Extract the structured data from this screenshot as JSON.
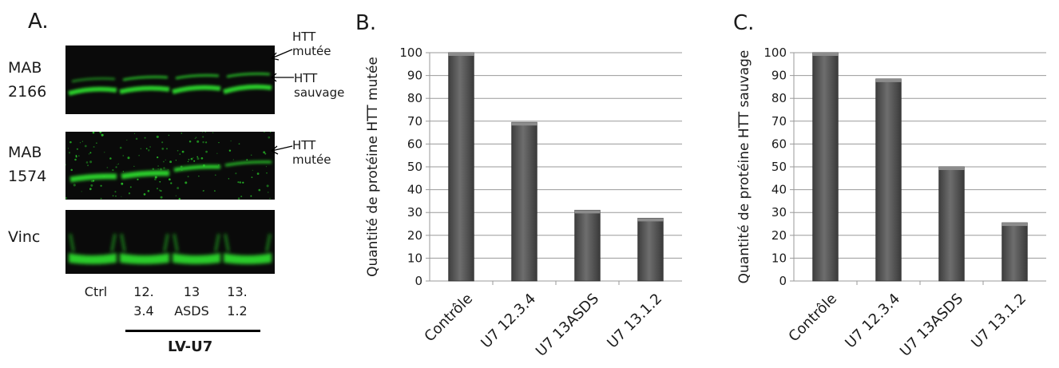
{
  "figure_a": {
    "panel_label": "A.",
    "blots": [
      {
        "label_line1": "MAB",
        "label_line2": "2166"
      },
      {
        "label_line1": "MAB",
        "label_line2": "1574"
      },
      {
        "label_line1": "Vinc",
        "label_line2": ""
      }
    ],
    "annotations": {
      "htt_mutee_1": {
        "line1": "HTT",
        "line2": "mutée"
      },
      "htt_sauvage": {
        "line1": "HTT",
        "line2": "sauvage"
      },
      "htt_mutee_2": {
        "line1": "HTT",
        "line2": "mutée"
      }
    },
    "lanes": [
      {
        "line1": "Ctrl",
        "line2": ""
      },
      {
        "line1": "12.",
        "line2": "3.4"
      },
      {
        "line1": "13",
        "line2": "ASDS"
      },
      {
        "line1": "13.",
        "line2": "1.2"
      }
    ],
    "group_label": "LV-U7",
    "band_color": "#2bd62b"
  },
  "chart_data": [
    {
      "panel_label": "B.",
      "type": "bar",
      "categories": [
        "Contrôle",
        "U7 12.3.4",
        "U7 13ASDS",
        "U7 13.1.2"
      ],
      "values": [
        100,
        69.5,
        31,
        27.5
      ],
      "ylabel": "Quantité de protéine HTT mutée",
      "ylim": [
        0,
        100
      ],
      "yticks": [
        0,
        10,
        20,
        30,
        40,
        50,
        60,
        70,
        80,
        90,
        100
      ],
      "grid": true,
      "bar_color": "#5a5a5a"
    },
    {
      "panel_label": "C.",
      "type": "bar",
      "categories": [
        "Contrôle",
        "U7 12.3.4",
        "U7 13ASDS",
        "U7 13.1.2"
      ],
      "values": [
        100,
        88.5,
        50,
        25.5
      ],
      "ylabel": "Quantité de protéine HTT sauvage",
      "ylim": [
        0,
        100
      ],
      "yticks": [
        0,
        10,
        20,
        30,
        40,
        50,
        60,
        70,
        80,
        90,
        100
      ],
      "grid": true,
      "bar_color": "#5a5a5a"
    }
  ]
}
